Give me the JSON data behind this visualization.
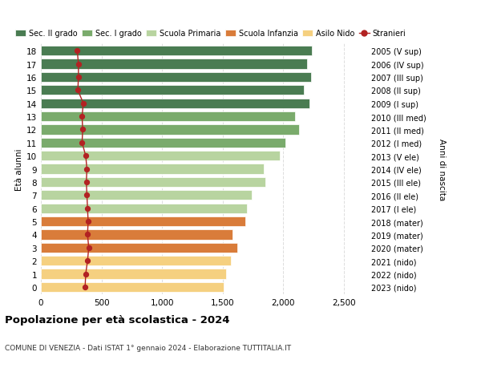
{
  "ages": [
    18,
    17,
    16,
    15,
    14,
    13,
    12,
    11,
    10,
    9,
    8,
    7,
    6,
    5,
    4,
    3,
    2,
    1,
    0
  ],
  "right_labels": [
    "2005 (V sup)",
    "2006 (IV sup)",
    "2007 (III sup)",
    "2008 (II sup)",
    "2009 (I sup)",
    "2010 (III med)",
    "2011 (II med)",
    "2012 (I med)",
    "2013 (V ele)",
    "2014 (IV ele)",
    "2015 (III ele)",
    "2016 (II ele)",
    "2017 (I ele)",
    "2018 (mater)",
    "2019 (mater)",
    "2020 (mater)",
    "2021 (nido)",
    "2022 (nido)",
    "2023 (nido)"
  ],
  "bar_values": [
    2240,
    2200,
    2230,
    2170,
    2220,
    2100,
    2130,
    2020,
    1970,
    1840,
    1850,
    1740,
    1700,
    1690,
    1580,
    1620,
    1570,
    1530,
    1510
  ],
  "stranieri_values": [
    300,
    310,
    310,
    305,
    350,
    340,
    345,
    340,
    370,
    380,
    375,
    380,
    385,
    390,
    385,
    395,
    385,
    370,
    365
  ],
  "bar_colors": [
    "#4a7c52",
    "#4a7c52",
    "#4a7c52",
    "#4a7c52",
    "#4a7c52",
    "#7aab6c",
    "#7aab6c",
    "#7aab6c",
    "#b8d4a0",
    "#b8d4a0",
    "#b8d4a0",
    "#b8d4a0",
    "#b8d4a0",
    "#d97c3a",
    "#d97c3a",
    "#d97c3a",
    "#f5d080",
    "#f5d080",
    "#f5d080"
  ],
  "legend_labels": [
    "Sec. II grado",
    "Sec. I grado",
    "Scuola Primaria",
    "Scuola Infanzia",
    "Asilo Nido",
    "Stranieri"
  ],
  "legend_colors": [
    "#4a7c52",
    "#7aab6c",
    "#b8d4a0",
    "#d97c3a",
    "#f5d080",
    "#b22222"
  ],
  "title": "Popolazione per età scolastica - 2024",
  "subtitle": "COMUNE DI VENEZIA - Dati ISTAT 1° gennaio 2024 - Elaborazione TUTTITALIA.IT",
  "ylabel": "Età alunni",
  "right_ylabel": "Anni di nascita",
  "xlabel_values": [
    0,
    500,
    1000,
    1500,
    2000,
    2500
  ],
  "xlim": [
    0,
    2700
  ],
  "background_color": "#ffffff",
  "grid_color": "#dddddd",
  "stranieri_line_color": "#b22222",
  "stranieri_marker_color": "#b22222"
}
